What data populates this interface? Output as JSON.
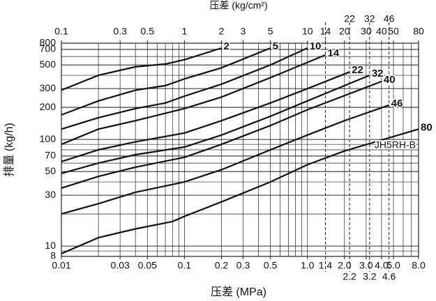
{
  "chart_data": {
    "type": "line",
    "title": "压差 (kg/cm²)",
    "x_label": "压差 (MPa)",
    "y_label": "排量 (kg/h)",
    "annotation": "JH5RH-B",
    "log_x": true,
    "log_y": true,
    "grid": true,
    "color": "#111111",
    "xlim": [
      0.01,
      8.0
    ],
    "ylim": [
      8,
      800
    ],
    "x2lim": [
      0.1,
      80
    ],
    "xticks": [
      0.01,
      0.03,
      0.05,
      0.1,
      0.2,
      0.3,
      0.5,
      {
        "value": 1,
        "label": "1.0"
      },
      1.4,
      {
        "value": 2,
        "label": "2.0"
      },
      {
        "value": 3,
        "label": "3.0"
      },
      {
        "value": 4,
        "label": "4.0"
      },
      {
        "value": 5,
        "label": "5.0"
      },
      {
        "value": 8,
        "label": "8.0"
      }
    ],
    "xticks_lower": [
      2.2,
      3.2,
      4.6
    ],
    "x2ticks": [
      0.1,
      0.3,
      0.5,
      1,
      2,
      3,
      5,
      10,
      14,
      20,
      30,
      40,
      50,
      80
    ],
    "x2ticks_upper": [
      22,
      32,
      46
    ],
    "reference_lines": [
      1.4,
      2.2,
      3.2,
      4.6
    ],
    "yticks": [
      8,
      10,
      30,
      50,
      70,
      100,
      200,
      300,
      500,
      700,
      800
    ],
    "series": [
      {
        "name": "2",
        "x": [
          0.01,
          0.02,
          0.04,
          0.07,
          0.1,
          0.2
        ],
        "values": [
          290,
          400,
          480,
          510,
          560,
          720
        ]
      },
      {
        "name": "5",
        "x": [
          0.01,
          0.02,
          0.04,
          0.07,
          0.1,
          0.2,
          0.5
        ],
        "values": [
          170,
          230,
          290,
          320,
          370,
          470,
          720
        ]
      },
      {
        "name": "10",
        "x": [
          0.01,
          0.02,
          0.04,
          0.07,
          0.1,
          0.2,
          0.5,
          1.0
        ],
        "values": [
          125,
          160,
          195,
          220,
          255,
          330,
          500,
          720
        ]
      },
      {
        "name": "14",
        "x": [
          0.01,
          0.02,
          0.04,
          0.1,
          0.2,
          0.5,
          1.4
        ],
        "values": [
          90,
          125,
          150,
          195,
          250,
          380,
          620
        ]
      },
      {
        "name": "22",
        "x": [
          0.01,
          0.02,
          0.04,
          0.1,
          0.2,
          0.5,
          1,
          2.2
        ],
        "values": [
          62,
          80,
          95,
          115,
          150,
          220,
          300,
          430
        ]
      },
      {
        "name": "32",
        "x": [
          0.01,
          0.02,
          0.04,
          0.1,
          0.2,
          0.5,
          1,
          3.2
        ],
        "values": [
          48,
          60,
          72,
          85,
          110,
          165,
          230,
          400
        ]
      },
      {
        "name": "40",
        "x": [
          0.01,
          0.02,
          0.04,
          0.1,
          0.2,
          0.5,
          1,
          4.0
        ],
        "values": [
          35,
          45,
          55,
          68,
          90,
          135,
          190,
          350
        ]
      },
      {
        "name": "46",
        "x": [
          0.01,
          0.02,
          0.04,
          0.1,
          0.2,
          0.5,
          1,
          2,
          4.6
        ],
        "values": [
          20,
          25,
          32,
          40,
          52,
          80,
          110,
          150,
          210
        ]
      },
      {
        "name": "80",
        "x": [
          0.01,
          0.02,
          0.04,
          0.08,
          0.1,
          0.2,
          0.5,
          1,
          2,
          8.0
        ],
        "values": [
          8.5,
          12,
          14.5,
          17,
          19,
          26,
          40,
          58,
          78,
          125
        ]
      }
    ]
  }
}
